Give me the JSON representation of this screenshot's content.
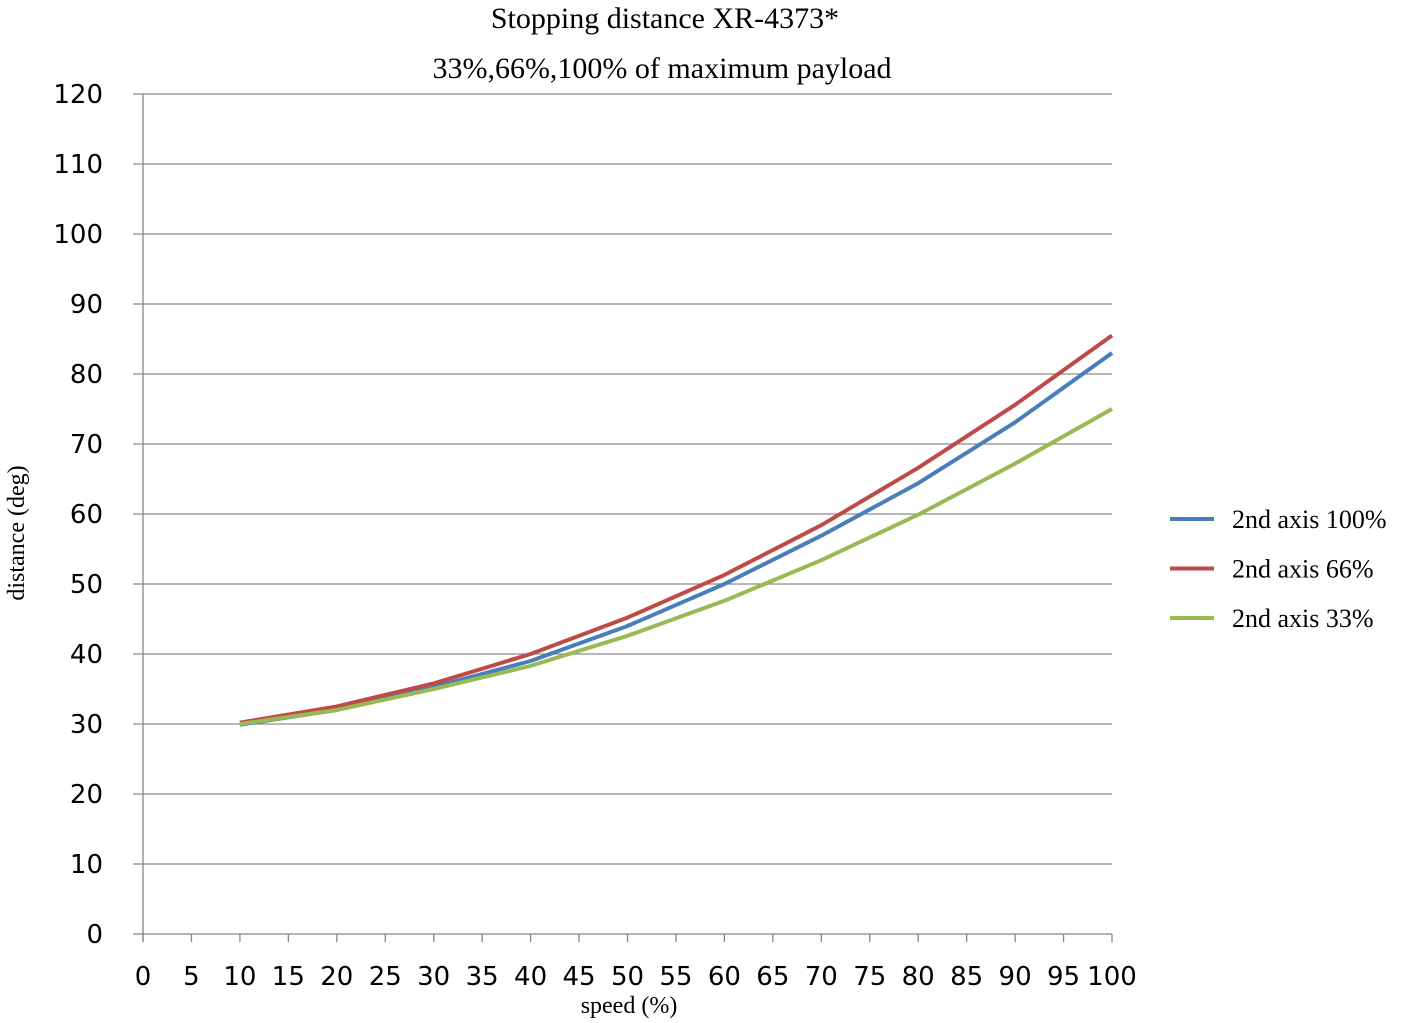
{
  "chart_data": {
    "type": "line",
    "title": "Stopping distance   XR-4373*",
    "subtitle": "33%,66%,100% of maximum payload",
    "xlabel": "speed (%)",
    "ylabel": "distance (deg)",
    "xlim": [
      0,
      100
    ],
    "ylim": [
      0,
      120
    ],
    "x_ticks": [
      "0",
      "5",
      "10",
      "15",
      "20",
      "25",
      "30",
      "35",
      "40",
      "45",
      "50",
      "55",
      "60",
      "65",
      "70",
      "75",
      "80",
      "85",
      "90",
      "95",
      "100"
    ],
    "y_ticks": [
      "0",
      "10",
      "20",
      "30",
      "40",
      "50",
      "60",
      "70",
      "80",
      "90",
      "100",
      "110",
      "120"
    ],
    "grid": "horizontal",
    "legend_position": "right",
    "x": [
      10,
      20,
      30,
      40,
      50,
      60,
      70,
      80,
      90,
      100
    ],
    "series": [
      {
        "name": "2nd axis 100%",
        "color": "#4a7ebb",
        "values": [
          29.9,
          32.0,
          35.3,
          39.0,
          44.0,
          50.0,
          56.9,
          64.4,
          73.1,
          83.0
        ]
      },
      {
        "name": "2nd axis 66%",
        "color": "#be4b48",
        "values": [
          30.2,
          32.5,
          35.8,
          40.0,
          45.2,
          51.3,
          58.4,
          66.6,
          75.6,
          85.5
        ]
      },
      {
        "name": "2nd axis 33%",
        "color": "#98b954",
        "values": [
          30.0,
          32.0,
          35.0,
          38.3,
          42.6,
          47.6,
          53.4,
          59.9,
          67.2,
          75.0
        ]
      }
    ]
  }
}
